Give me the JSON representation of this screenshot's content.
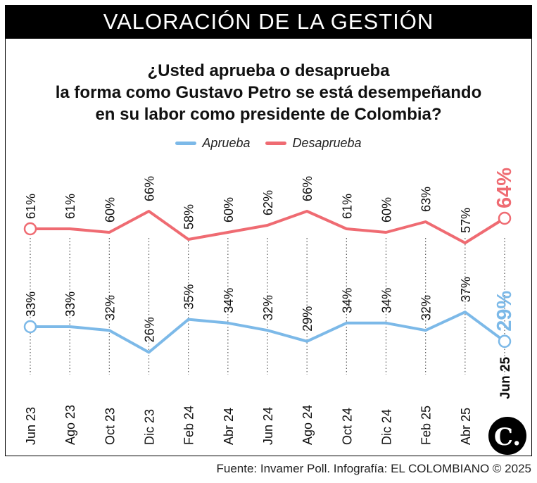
{
  "header": {
    "title": "VALORACIÓN DE LA GESTIÓN"
  },
  "question": {
    "line1": "¿Usted aprueba o desaprueba",
    "line2": "la forma como Gustavo Petro se está desempeñando",
    "line3": "en su labor como presidente de Colombia?"
  },
  "legend": {
    "approve": "Aprueba",
    "disapprove": "Desaprueba"
  },
  "colors": {
    "approve": "#7cb9e8",
    "disapprove": "#ef6b72",
    "header_bg": "#000000"
  },
  "chart_data": {
    "type": "line",
    "categories": [
      "Jun 23",
      "Ago 23",
      "Oct 23",
      "Dic 23",
      "Feb 24",
      "Abr 24",
      "Jun 24",
      "Ago 24",
      "Oct 24",
      "Dic 24",
      "Feb 25",
      "Abr 25",
      "Jun 25"
    ],
    "series": [
      {
        "name": "Aprueba",
        "values": [
          33,
          33,
          32,
          26,
          35,
          34,
          32,
          29,
          34,
          34,
          32,
          37,
          29
        ],
        "labels": [
          "33%",
          "33%",
          "32%",
          "26%",
          "35%",
          "34%",
          "32%",
          "29%",
          "34%",
          "34%",
          "32%",
          "37%",
          "29%"
        ]
      },
      {
        "name": "Desaprueba",
        "values": [
          61,
          61,
          60,
          66,
          58,
          60,
          62,
          66,
          61,
          60,
          63,
          57,
          64
        ],
        "labels": [
          "61%",
          "61%",
          "60%",
          "66%",
          "58%",
          "60%",
          "62%",
          "66%",
          "61%",
          "60%",
          "63%",
          "57%",
          "64%"
        ]
      }
    ],
    "grid": "vertical dotted",
    "legend_position": "top-center"
  },
  "logo": {
    "text": "C."
  },
  "source": "Fuente: Invamer Poll. Infografía: EL COLOMBIANO © 2025"
}
